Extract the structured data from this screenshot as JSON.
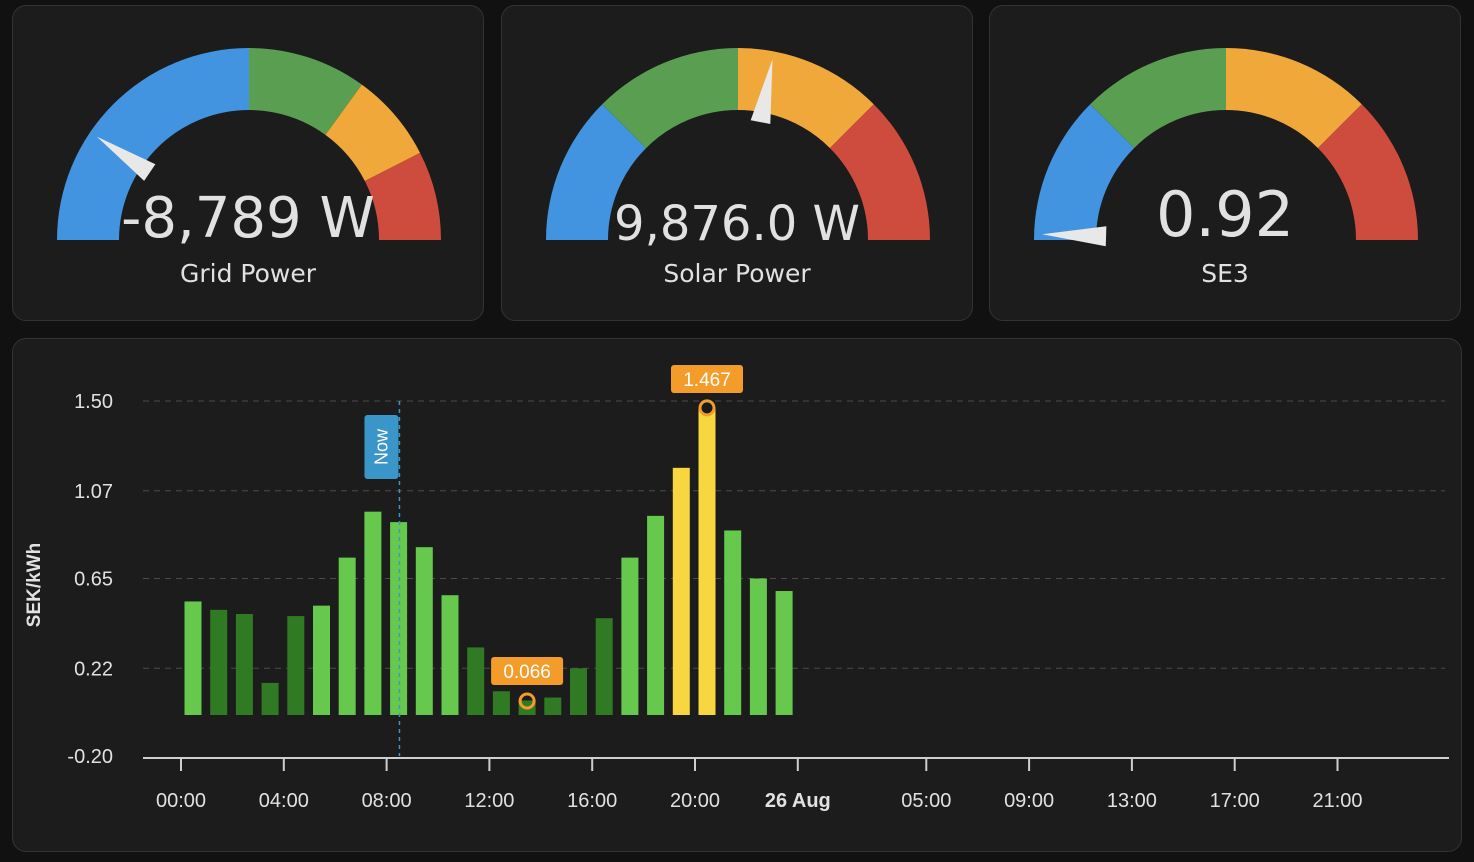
{
  "colors": {
    "background": "#111111",
    "card": "#1c1c1c",
    "gauge_blue": "#4394e0",
    "gauge_green": "#5a9e52",
    "gauge_orange": "#f0a83a",
    "gauge_red": "#cd4c3e",
    "bar_light_green": "#66c94e",
    "bar_dark_green": "#2f7a22",
    "bar_yellow": "#f7d63f",
    "marker_orange": "#f39c2a",
    "now_blue": "#3a96c8"
  },
  "gauges": [
    {
      "name": "Grid Power",
      "value": "-8,789 W",
      "needle_fraction": 0.19
    },
    {
      "name": "Solar Power",
      "value": "9,876.0 W",
      "needle_fraction": 0.56
    },
    {
      "name": "SE3",
      "value": "0.92",
      "needle_fraction": 0.01
    }
  ],
  "chart_data": {
    "type": "bar",
    "ylabel": "SEK/kWh",
    "yticks": [
      "1.50",
      "1.07",
      "0.65",
      "0.22",
      "-0.20"
    ],
    "ylim": [
      -0.2,
      1.5
    ],
    "xticks": [
      "00:00",
      "04:00",
      "08:00",
      "12:00",
      "16:00",
      "20:00",
      "26 Aug",
      "05:00",
      "09:00",
      "13:00",
      "17:00",
      "21:00"
    ],
    "grid": "horizontal dashed",
    "now_label": "Now",
    "now_hour": 8.5,
    "series": [
      {
        "hours": [
          0,
          1,
          2,
          3,
          4,
          5,
          6,
          7,
          8,
          9,
          10,
          11,
          12,
          13,
          14,
          15,
          16,
          17,
          18,
          19,
          20,
          21,
          22,
          23
        ],
        "values": [
          0.54,
          0.5,
          0.48,
          0.15,
          0.47,
          0.52,
          0.75,
          0.97,
          0.92,
          0.8,
          0.57,
          0.32,
          0.11,
          0.066,
          0.08,
          0.22,
          0.46,
          0.75,
          0.95,
          1.18,
          1.467,
          0.88,
          0.65,
          0.59
        ],
        "levels": [
          "light",
          "dark",
          "dark",
          "dark",
          "dark",
          "light",
          "light",
          "light",
          "light",
          "light",
          "light",
          "dark",
          "dark",
          "dark",
          "dark",
          "dark",
          "dark",
          "light",
          "light",
          "yellow",
          "yellow",
          "light",
          "light",
          "light"
        ]
      }
    ],
    "annotations": [
      {
        "label": "1.467",
        "hour": 20,
        "value": 1.467,
        "kind": "max"
      },
      {
        "label": "0.066",
        "hour": 13,
        "value": 0.066,
        "kind": "min"
      }
    ]
  }
}
